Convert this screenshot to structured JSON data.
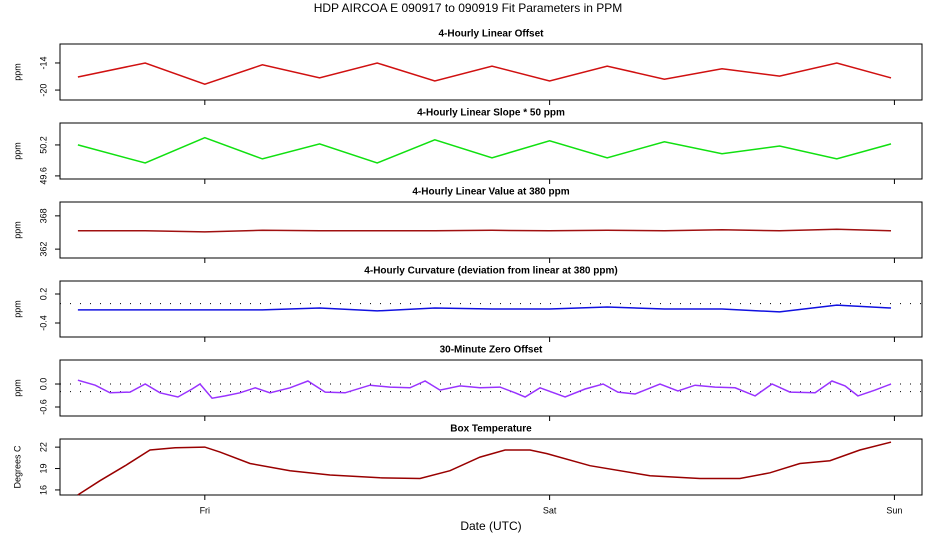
{
  "title": "HDP   AIRCOA E   090917 to 090919   Fit Parameters in PPM",
  "chart_data": [
    {
      "type": "line",
      "title": "4-Hourly Linear Offset",
      "ylabel": "ppm",
      "color": "#d01010",
      "x": [
        -0.368,
        -0.173,
        0,
        0.167,
        0.333,
        0.5,
        0.667,
        0.833,
        1,
        1.167,
        1.333,
        1.5,
        1.667,
        1.833,
        1.99
      ],
      "values": [
        -17.1,
        -14.0,
        -18.7,
        -14.4,
        -17.3,
        -14.0,
        -18.0,
        -14.7,
        -18.0,
        -14.7,
        -17.6,
        -15.3,
        -16.9,
        -14.0,
        -17.3
      ],
      "ylim": [
        -22.2,
        -9.8
      ],
      "yticks": [
        -14,
        -20
      ]
    },
    {
      "type": "line",
      "title": "4-Hourly Linear Slope * 50 ppm",
      "ylabel": "ppm",
      "color": "#10e010",
      "x": [
        -0.368,
        -0.173,
        0,
        0.167,
        0.333,
        0.5,
        0.667,
        0.833,
        1,
        1.167,
        1.333,
        1.5,
        1.667,
        1.833,
        1.99
      ],
      "values": [
        50.2,
        49.85,
        50.34,
        49.93,
        50.22,
        49.85,
        50.3,
        49.95,
        50.28,
        49.95,
        50.26,
        50.03,
        50.18,
        49.93,
        50.22
      ],
      "ylim": [
        49.54,
        50.625
      ],
      "yticks": [
        50.2,
        49.6
      ]
    },
    {
      "type": "line",
      "title": "4-Hourly Linear Value at 380 ppm",
      "ylabel": "ppm",
      "color": "#a01010",
      "x": [
        -0.368,
        -0.173,
        0,
        0.167,
        0.333,
        0.5,
        0.667,
        0.833,
        1,
        1.167,
        1.333,
        1.5,
        1.667,
        1.833,
        1.99
      ],
      "values": [
        365.3,
        365.3,
        365.1,
        365.4,
        365.3,
        365.3,
        365.3,
        365.4,
        365.3,
        365.4,
        365.3,
        365.5,
        365.3,
        365.6,
        365.3
      ],
      "ylim": [
        360.4,
        370.5
      ],
      "yticks": [
        368,
        362
      ]
    },
    {
      "type": "line",
      "title": "4-Hourly Curvature (deviation from linear at 380 ppm)",
      "ylabel": "ppm",
      "color": "#1010e0",
      "x": [
        -0.368,
        -0.173,
        0,
        0.167,
        0.333,
        0.5,
        0.667,
        0.833,
        1,
        1.167,
        1.333,
        1.5,
        1.667,
        1.833,
        1.99
      ],
      "values": [
        -0.13,
        -0.13,
        -0.13,
        -0.13,
        -0.09,
        -0.15,
        -0.09,
        -0.11,
        -0.11,
        -0.07,
        -0.11,
        -0.11,
        -0.17,
        -0.03,
        -0.09
      ],
      "ylim": [
        -0.69,
        0.469
      ],
      "yticks": [
        0.2,
        -0.4
      ],
      "hlines": [
        0
      ]
    },
    {
      "type": "line",
      "title": "30-Minute Zero Offset",
      "ylabel": "ppm",
      "color": "#9933ff",
      "x": [
        -0.368,
        -0.318,
        -0.275,
        -0.217,
        -0.173,
        -0.13,
        -0.078,
        -0.037,
        -0.014,
        0.021,
        0.059,
        0.102,
        0.146,
        0.189,
        0.247,
        0.299,
        0.349,
        0.407,
        0.479,
        0.537,
        0.595,
        0.639,
        0.682,
        0.74,
        0.798,
        0.856,
        0.9,
        0.929,
        0.972,
        1.045,
        1.103,
        1.155,
        1.198,
        1.248,
        1.32,
        1.372,
        1.422,
        1.48,
        1.538,
        1.596,
        1.645,
        1.697,
        1.77,
        1.819,
        1.857,
        1.894,
        1.944,
        1.99
      ],
      "values": [
        0.1,
        -0.03,
        -0.23,
        -0.21,
        0,
        -0.23,
        -0.34,
        -0.13,
        0,
        -0.37,
        -0.31,
        -0.23,
        -0.1,
        -0.23,
        -0.1,
        0.08,
        -0.21,
        -0.23,
        -0.03,
        -0.08,
        -0.1,
        0.08,
        -0.16,
        -0.05,
        -0.1,
        -0.08,
        -0.23,
        -0.34,
        -0.1,
        -0.34,
        -0.13,
        0,
        -0.21,
        -0.26,
        0,
        -0.18,
        -0.03,
        -0.08,
        -0.1,
        -0.31,
        0,
        -0.21,
        -0.23,
        0.08,
        -0.05,
        -0.31,
        -0.16,
        0
      ],
      "ylim": [
        -0.835,
        0.627
      ],
      "yticks": [
        {
          "value": 0,
          "label": "0.0"
        },
        -0.6
      ],
      "hlines": [
        0,
        -0.2
      ]
    },
    {
      "type": "line",
      "title": "Box Temperature",
      "ylabel": "Degrees C",
      "color": "#990000",
      "x": [
        -0.368,
        -0.304,
        -0.231,
        -0.159,
        -0.086,
        0,
        0.044,
        0.131,
        0.247,
        0.363,
        0.508,
        0.624,
        0.711,
        0.798,
        0.871,
        0.943,
        0.992,
        1.117,
        1.291,
        1.436,
        1.552,
        1.639,
        1.726,
        1.813,
        1.9,
        1.99
      ],
      "values": [
        15.3,
        17.3,
        19.4,
        21.6,
        21.9,
        22.0,
        21.3,
        19.7,
        18.7,
        18.1,
        17.7,
        17.6,
        18.7,
        20.6,
        21.6,
        21.6,
        21.1,
        19.4,
        18.0,
        17.6,
        17.6,
        18.4,
        19.7,
        20.1,
        21.6,
        22.7
      ],
      "ylim": [
        15.29,
        23.14
      ],
      "yticks": [
        22,
        19,
        16
      ],
      "xlabel": "Date (UTC)",
      "xlim": [
        -0.42,
        2.08
      ],
      "xticks": [
        {
          "value": 0,
          "label": "Fri"
        },
        {
          "value": 1,
          "label": "Sat"
        },
        {
          "value": 2,
          "label": "Sun"
        }
      ]
    }
  ]
}
